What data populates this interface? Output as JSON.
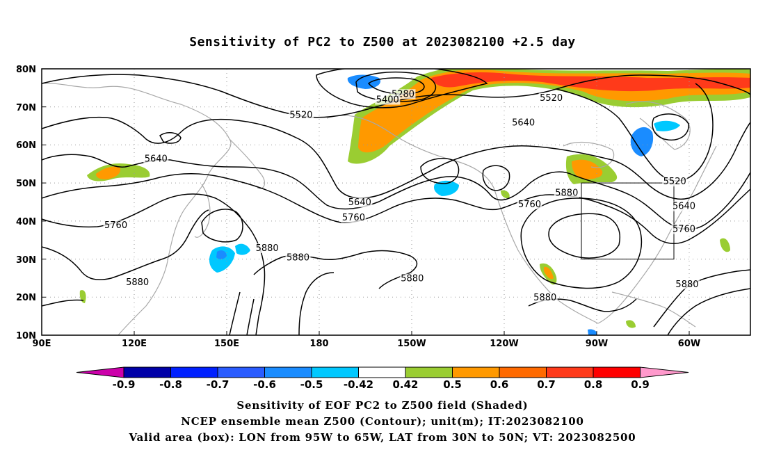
{
  "title": "Sensitivity of PC2 to Z500 at 2023082100 +2.5 day",
  "map": {
    "lat_labels": [
      "80N",
      "70N",
      "60N",
      "50N",
      "40N",
      "30N",
      "20N",
      "10N"
    ],
    "lon_labels": [
      "90E",
      "120E",
      "150E",
      "180",
      "150W",
      "120W",
      "90W",
      "60W"
    ],
    "contour_labels": [
      {
        "text": "5280",
        "lon": 207,
        "lat": 73.0
      },
      {
        "text": "5400",
        "lon": 202,
        "lat": 71.5
      },
      {
        "text": "5520",
        "lon": 255,
        "lat": 72.0
      },
      {
        "text": "5520",
        "lon": 174,
        "lat": 67.5
      },
      {
        "text": "5640",
        "lon": 246,
        "lat": 65.5
      },
      {
        "text": "5640",
        "lon": 127,
        "lat": 56.0
      },
      {
        "text": "5640",
        "lon": 193,
        "lat": 44.5
      },
      {
        "text": "5640",
        "lon": 298,
        "lat": 43.5
      },
      {
        "text": "5520",
        "lon": 295,
        "lat": 50.0
      },
      {
        "text": "5760",
        "lon": 114,
        "lat": 38.5
      },
      {
        "text": "5760",
        "lon": 191,
        "lat": 40.5
      },
      {
        "text": "5760",
        "lon": 248,
        "lat": 44.0
      },
      {
        "text": "5760",
        "lon": 298,
        "lat": 37.5
      },
      {
        "text": "5880",
        "lon": 260,
        "lat": 47.0
      },
      {
        "text": "5880",
        "lon": 163,
        "lat": 32.5
      },
      {
        "text": "5880",
        "lon": 173,
        "lat": 30.0
      },
      {
        "text": "5880",
        "lon": 121,
        "lat": 23.5
      },
      {
        "text": "5880",
        "lon": 210,
        "lat": 24.5
      },
      {
        "text": "5880",
        "lon": 253,
        "lat": 19.5
      },
      {
        "text": "5880",
        "lon": 299,
        "lat": 23.0
      }
    ]
  },
  "colorbar": {
    "labels": [
      "-0.9",
      "-0.8",
      "-0.7",
      "-0.6",
      "-0.5",
      "-0.42",
      "0.42",
      "0.5",
      "0.6",
      "0.7",
      "0.8",
      "0.9"
    ],
    "colors": [
      "#0000a8",
      "#0020ff",
      "#2a5cff",
      "#1a8cff",
      "#00c8ff",
      "#ffffff",
      "#9acd32",
      "#ff9900",
      "#ff6a00",
      "#ff3a1a",
      "#ff0000"
    ],
    "low_color": "#cc00aa",
    "high_color": "#ff99cc"
  },
  "captions": {
    "line1": "Sensitivity of EOF PC2 to Z500 field (Shaded)",
    "line2": "NCEP ensemble mean Z500 (Contour); unit(m); IT:2023082100",
    "line3": "Valid area (box): LON from 95W to 65W, LAT from 30N to 50N; VT: 2023082500"
  }
}
